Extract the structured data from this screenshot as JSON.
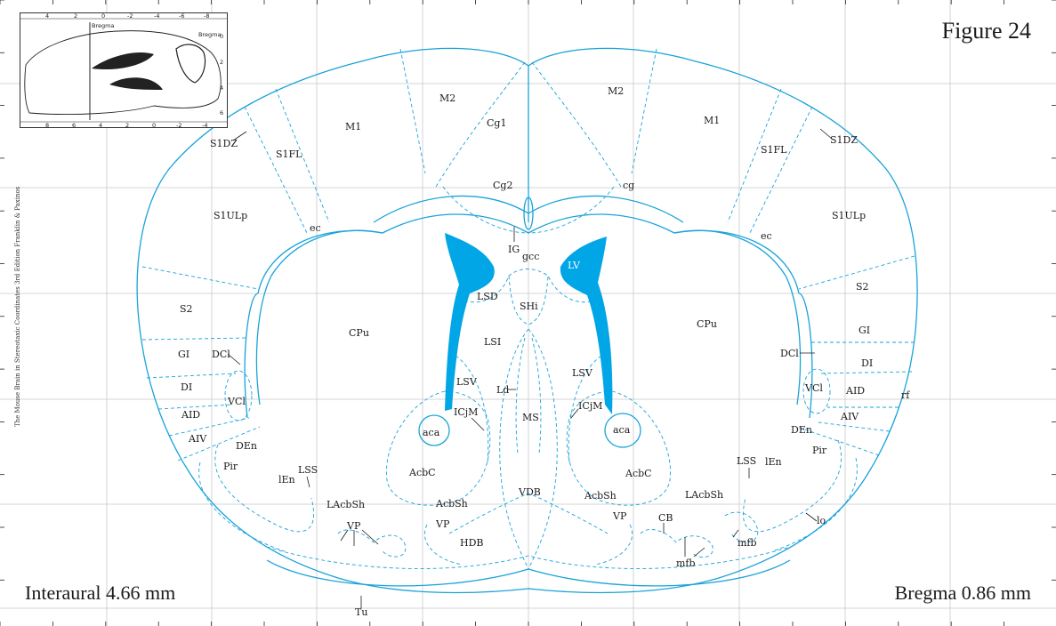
{
  "figure_title": "Figure 24",
  "interaural_label": "Interaural 4.66 mm",
  "bregma_label": "Bregma 0.86 mm",
  "side_credit": "The Mouse Brain in Stereotaxic Coordinates 3rd Edition  Franklin & Paxinos",
  "inset": {
    "top_ticks": [
      "4",
      "2",
      "0",
      "-2",
      "-4",
      "-6",
      "-8"
    ],
    "bottom_ticks": [
      "8",
      "6",
      "4",
      "2",
      "0",
      "-2",
      "-4"
    ],
    "left_ticks": [
      "6",
      "4",
      "2",
      "0"
    ],
    "right_ticks": [
      "0",
      "2",
      "4",
      "6"
    ],
    "bregma_top": "Bregma",
    "bregma_right": "Bregma"
  },
  "colors": {
    "structure_line": "#1aa3d9",
    "ventricle_fill": "#00a6e6",
    "grid": "#c8c8c8"
  },
  "labels": {
    "M2_left": "M2",
    "M2_right": "M2",
    "M1_left": "M1",
    "M1_right": "M1",
    "Cg1": "Cg1",
    "Cg2": "Cg2",
    "cg": "cg",
    "S1DZ_left": "S1DZ",
    "S1DZ_right": "S1DZ",
    "S1FL_left": "S1FL",
    "S1FL_right": "S1FL",
    "S1ULp_left": "S1ULp",
    "S1ULp_right": "S1ULp",
    "ec_left": "ec",
    "ec_right": "ec",
    "IG": "IG",
    "gcc": "gcc",
    "S2_left": "S2",
    "S2_right": "S2",
    "CPu_left": "CPu",
    "CPu_right": "CPu",
    "LV": "LV",
    "LSD": "LSD",
    "SHi": "SHi",
    "LSI": "LSI",
    "GI_left": "GI",
    "GI_right": "GI",
    "DCl_left": "DCl",
    "DCl_right": "DCl",
    "DI_left": "DI",
    "DI_right": "DI",
    "VCl_left": "VCl",
    "VCl_right": "VCl",
    "AID_left": "AID",
    "AID_right": "AID",
    "AIV_left": "AIV",
    "AIV_right": "AIV",
    "DEn_left": "DEn",
    "DEn_right": "DEn",
    "Pir_left": "Pir",
    "Pir_right": "Pir",
    "LSV_left": "LSV",
    "LSV_right": "LSV",
    "Ld": "Ld",
    "MS": "MS",
    "ICjM_left": "ICjM",
    "ICjM_right": "ICjM",
    "aca_left": "aca",
    "aca_right": "aca",
    "AcbC_left": "AcbC",
    "AcbC_right": "AcbC",
    "LSS_left": "LSS",
    "LSS_right": "LSS",
    "lEn_left": "lEn",
    "lEn_right": "lEn",
    "LAcbSh_left": "LAcbSh",
    "LAcbSh_right": "LAcbSh",
    "AcbSh_left": "AcbSh",
    "AcbSh_right": "AcbSh",
    "VDB": "VDB",
    "VP_a": "VP",
    "VP_b": "VP",
    "VP_c": "VP",
    "HDB": "HDB",
    "CB": "CB",
    "mfb_a": "mfb",
    "mfb_b": "mfb",
    "lo": "lo",
    "rf": "rf",
    "Tu": "Tu"
  }
}
